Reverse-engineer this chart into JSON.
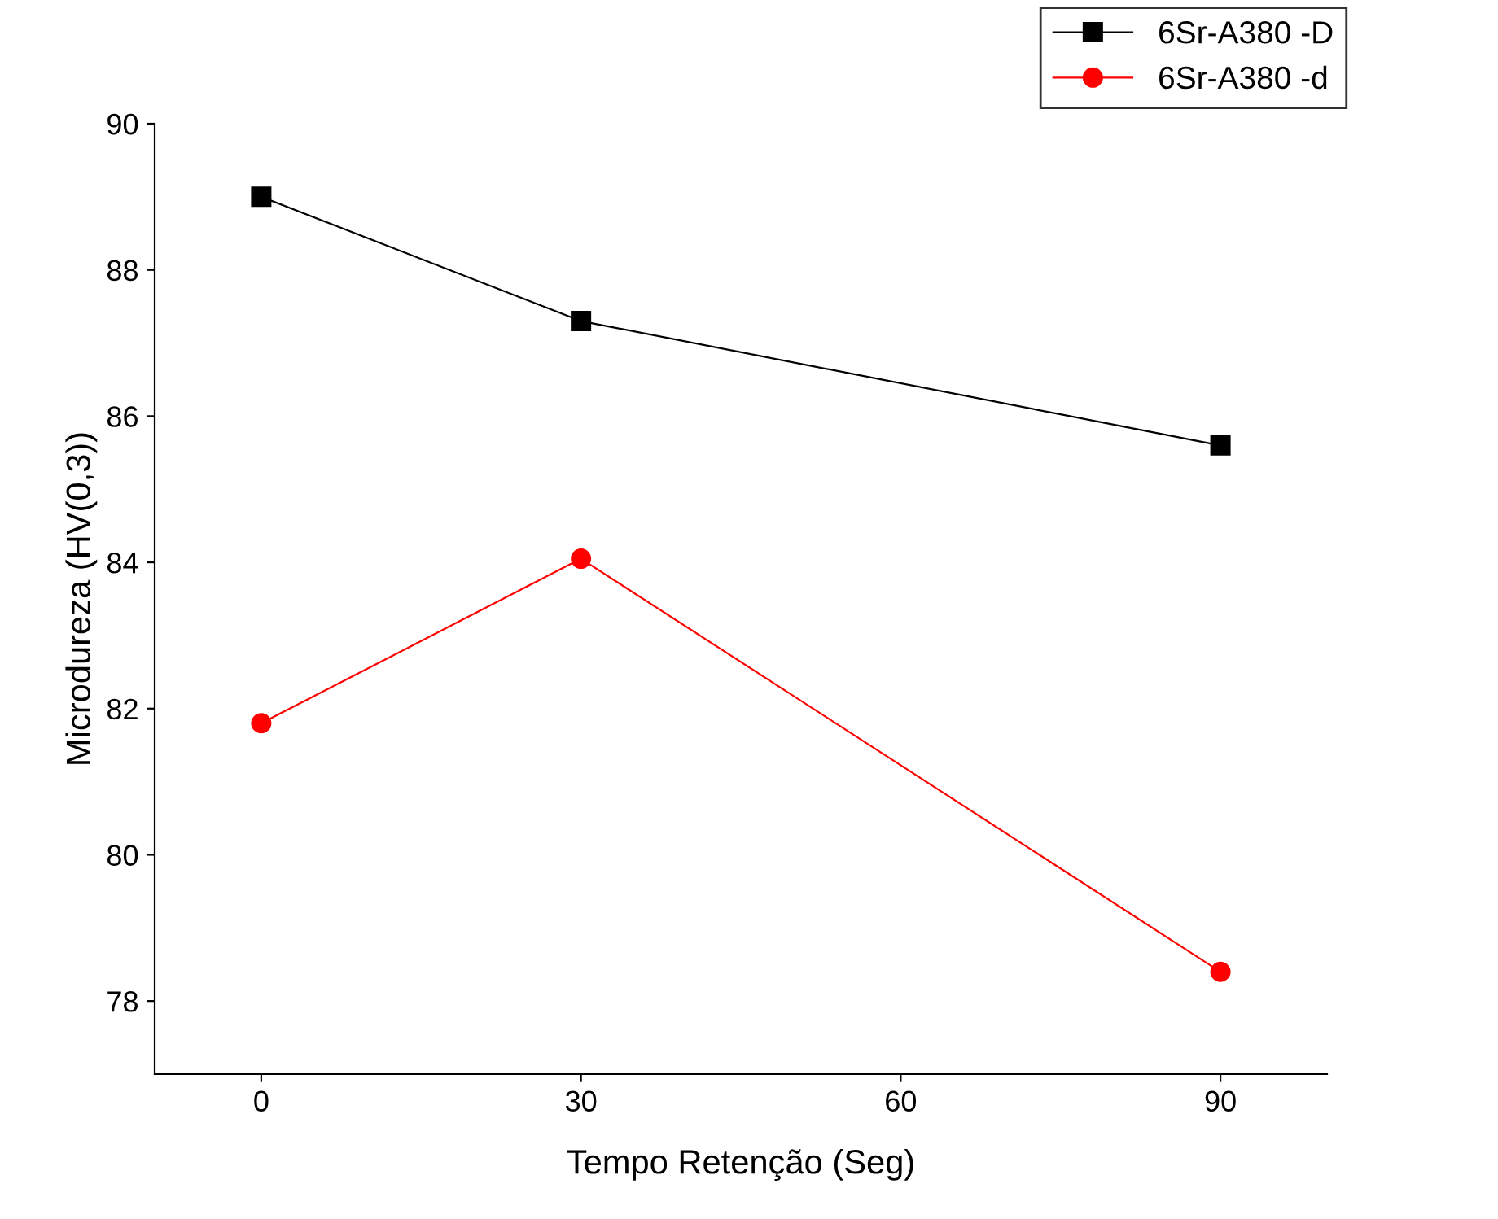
{
  "chart_data": {
    "type": "line",
    "xlabel": "Tempo Retenção (Seg)",
    "ylabel": "Microdureza (HV(0,3))",
    "x": [
      0,
      30,
      90
    ],
    "series": [
      {
        "name": "6Sr-A380 -D",
        "color": "#000000",
        "marker": "square",
        "values": [
          89.0,
          87.3,
          85.6
        ]
      },
      {
        "name": "6Sr-A380 -d",
        "color": "#ff0000",
        "marker": "circle",
        "values": [
          81.8,
          84.05,
          78.4
        ]
      }
    ],
    "xlim": [
      -10,
      100
    ],
    "xticks": [
      0,
      30,
      60,
      90
    ],
    "ylim": [
      77,
      90
    ],
    "yticks": [
      78,
      80,
      82,
      84,
      86,
      88,
      90
    ],
    "grid": false,
    "legend": "top right",
    "line_style": "solid"
  }
}
